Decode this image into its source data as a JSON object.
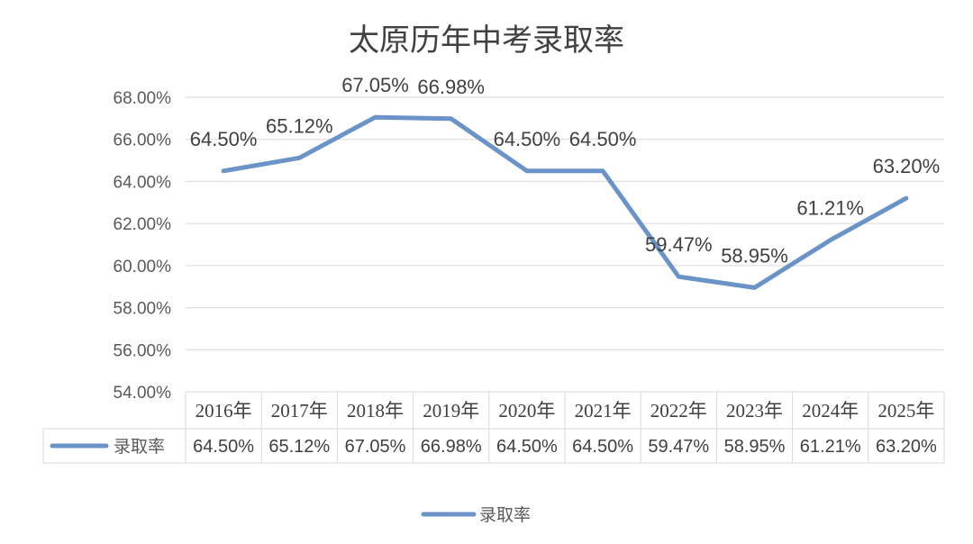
{
  "chart_data": {
    "type": "line",
    "title": "太原历年中考录取率",
    "categories": [
      "2016年",
      "2017年",
      "2018年",
      "2019年",
      "2020年",
      "2021年",
      "2022年",
      "2023年",
      "2024年",
      "2025年"
    ],
    "series": [
      {
        "name": "录取率",
        "values": [
          64.5,
          65.12,
          67.05,
          66.98,
          64.5,
          64.5,
          59.47,
          58.95,
          61.21,
          63.2
        ],
        "labels": [
          "64.50%",
          "65.12%",
          "67.05%",
          "66.98%",
          "64.50%",
          "64.50%",
          "59.47%",
          "58.95%",
          "61.21%",
          "63.20%"
        ],
        "color": "#6a93c7"
      }
    ],
    "ylim": [
      54,
      68
    ],
    "ystep": 2,
    "ytick_labels": [
      "54.00%",
      "56.00%",
      "58.00%",
      "60.00%",
      "62.00%",
      "64.00%",
      "66.00%",
      "68.00%"
    ],
    "grid": true,
    "data_table": true,
    "legend_position": "bottom"
  }
}
